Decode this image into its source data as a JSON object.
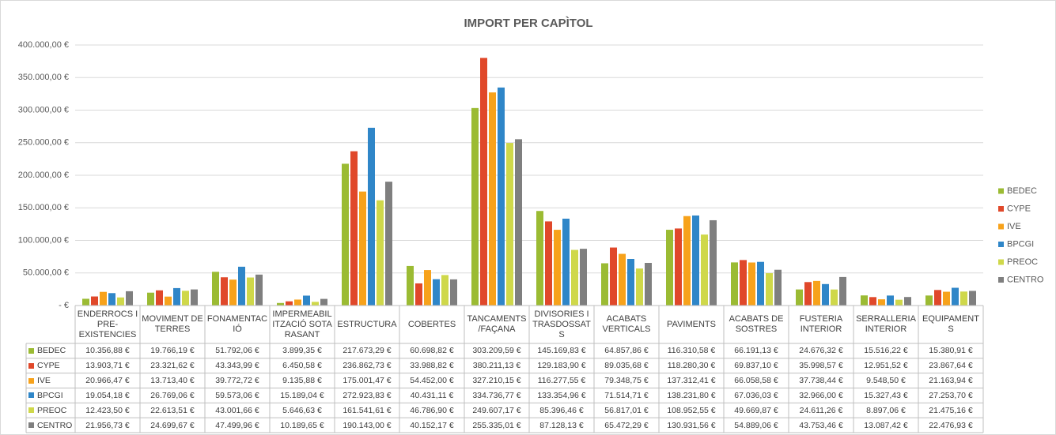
{
  "chart_data": {
    "type": "bar",
    "title": "IMPORT PER CAPÌTOL",
    "categories": [
      "ENDERROCS I PRE-EXISTENCIES",
      "MOVIMENT DE TERRES",
      "FONAMENTACIÓ",
      "IMPERMEABILITZACIÓ SOTA RASANT",
      "ESTRUCTURA",
      "COBERTES",
      "TANCAMENTS /FAÇANA",
      "DIVISORIES I TRASDOSSATS",
      "ACABATS VERTICALS",
      "PAVIMENTS",
      "ACABATS DE SOSTRES",
      "FUSTERIA INTERIOR",
      "SERRALLERIA INTERIOR",
      "EQUIPAMENTS"
    ],
    "series": [
      {
        "name": "BEDEC",
        "color": "#9bbb33",
        "values": [
          10356.88,
          19766.19,
          51792.06,
          3899.35,
          217673.29,
          60698.82,
          303209.59,
          145169.83,
          64857.86,
          116310.58,
          66191.13,
          24676.32,
          15516.22,
          15380.91
        ],
        "value_labels": [
          "10.356,88 €",
          "19.766,19 €",
          "51.792,06 €",
          "3.899,35 €",
          "217.673,29 €",
          "60.698,82 €",
          "303.209,59 €",
          "145.169,83 €",
          "64.857,86 €",
          "116.310,58 €",
          "66.191,13 €",
          "24.676,32 €",
          "15.516,22 €",
          "15.380,91 €"
        ]
      },
      {
        "name": "CYPE",
        "color": "#e0482a",
        "values": [
          13903.71,
          23321.62,
          43343.99,
          6450.58,
          236862.73,
          33988.82,
          380211.13,
          129183.9,
          89035.68,
          118280.3,
          69837.1,
          35998.57,
          12951.52,
          23867.64
        ],
        "value_labels": [
          "13.903,71 €",
          "23.321,62 €",
          "43.343,99 €",
          "6.450,58 €",
          "236.862,73 €",
          "33.988,82 €",
          "380.211,13 €",
          "129.183,90 €",
          "89.035,68 €",
          "118.280,30 €",
          "69.837,10 €",
          "35.998,57 €",
          "12.951,52 €",
          "23.867,64 €"
        ]
      },
      {
        "name": "IVE",
        "color": "#f7a21b",
        "values": [
          20966.47,
          13713.4,
          39772.72,
          9135.88,
          175001.47,
          54452,
          327210.15,
          116277.55,
          79348.75,
          137312.41,
          66058.58,
          37738.44,
          9548.5,
          21163.94
        ],
        "value_labels": [
          "20.966,47 €",
          "13.713,40 €",
          "39.772,72 €",
          "9.135,88 €",
          "175.001,47 €",
          "54.452,00 €",
          "327.210,15 €",
          "116.277,55 €",
          "79.348,75 €",
          "137.312,41 €",
          "66.058,58 €",
          "37.738,44 €",
          "9.548,50 €",
          "21.163,94 €"
        ]
      },
      {
        "name": "BPCGI",
        "color": "#2f86c8",
        "values": [
          19054.18,
          26769.06,
          59573.06,
          15189.04,
          272923.83,
          40431.11,
          334736.77,
          133354.96,
          71514.71,
          138231.8,
          67036.03,
          32966,
          15327.43,
          27253.7
        ],
        "value_labels": [
          "19.054,18 €",
          "26.769,06 €",
          "59.573,06 €",
          "15.189,04 €",
          "272.923,83 €",
          "40.431,11 €",
          "334.736,77 €",
          "133.354,96 €",
          "71.514,71 €",
          "138.231,80 €",
          "67.036,03 €",
          "32.966,00 €",
          "15.327,43 €",
          "27.253,70 €"
        ]
      },
      {
        "name": "PREOC",
        "color": "#cfd84a",
        "values": [
          12423.5,
          22613.51,
          43001.66,
          5646.63,
          161541.61,
          46786.9,
          249607.17,
          85396.46,
          56817.01,
          108952.55,
          49669.87,
          24611.26,
          8897.06,
          21475.16
        ],
        "value_labels": [
          "12.423,50 €",
          "22.613,51 €",
          "43.001,66 €",
          "5.646,63 €",
          "161.541,61 €",
          "46.786,90 €",
          "249.607,17 €",
          "85.396,46 €",
          "56.817,01 €",
          "108.952,55 €",
          "49.669,87 €",
          "24.611,26 €",
          "8.897,06 €",
          "21.475,16 €"
        ]
      },
      {
        "name": "CENTRO",
        "color": "#7f7f7f",
        "values": [
          21956.73,
          24699.67,
          47499.96,
          10189.65,
          190143,
          40152.17,
          255335.01,
          87128.13,
          65472.29,
          130931.56,
          54889.06,
          43753.46,
          13087.42,
          22476.93
        ],
        "value_labels": [
          "21.956,73 €",
          "24.699,67 €",
          "47.499,96 €",
          "10.189,65 €",
          "190.143,00 €",
          "40.152,17 €",
          "255.335,01 €",
          "87.128,13 €",
          "65.472,29 €",
          "130.931,56 €",
          "54.889,06 €",
          "43.753,46 €",
          "13.087,42 €",
          "22.476,93 €"
        ]
      }
    ],
    "ylim": [
      0,
      400000
    ],
    "yticks": [
      {
        "value": 0,
        "label": "-   €"
      },
      {
        "value": 50000,
        "label": "50.000,00 €"
      },
      {
        "value": 100000,
        "label": "100.000,00 €"
      },
      {
        "value": 150000,
        "label": "150.000,00 €"
      },
      {
        "value": 200000,
        "label": "200.000,00 €"
      },
      {
        "value": 250000,
        "label": "250.000,00 €"
      },
      {
        "value": 300000,
        "label": "300.000,00 €"
      },
      {
        "value": 350000,
        "label": "350.000,00 €"
      },
      {
        "value": 400000,
        "label": "400.000,00 €"
      }
    ],
    "grid": true,
    "legend": "right"
  }
}
